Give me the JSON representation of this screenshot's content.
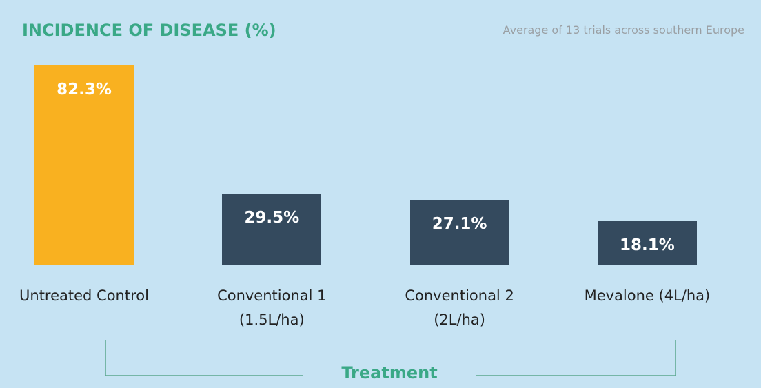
{
  "chart_data": {
    "type": "bar",
    "title": "INCIDENCE OF DISEASE (%)",
    "subtitle": "Average of 13 trials across southern Europe",
    "x_label": "Treatment",
    "categories": [
      "Untreated Control",
      "Conventional 1 (1.5L/ha)",
      "Conventional 2 (2L/ha)",
      "Mevalone (4L/ha)"
    ],
    "values": [
      82.3,
      29.5,
      27.1,
      18.1
    ],
    "value_labels": [
      "82.3%",
      "29.5%",
      "27.1%",
      "18.1%"
    ],
    "colors": [
      "#f9b120",
      "#344a5e",
      "#344a5e",
      "#344a5e"
    ]
  }
}
